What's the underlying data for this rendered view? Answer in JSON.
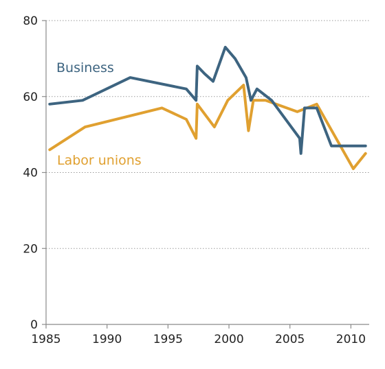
{
  "chart_data": {
    "type": "line",
    "title": "",
    "xlabel": "",
    "ylabel": "",
    "xlim": [
      1985,
      2011.5
    ],
    "ylim": [
      0,
      80
    ],
    "x_ticks": [
      1985,
      1990,
      1995,
      2000,
      2005,
      2010
    ],
    "y_ticks": [
      0,
      20,
      40,
      60,
      80
    ],
    "x_tick_labels": [
      "1985",
      "1990",
      "1995",
      "2000",
      "2005",
      "2010"
    ],
    "y_tick_labels": [
      "0",
      "20",
      "40",
      "60",
      "80"
    ],
    "grid": "horizontal dotted",
    "legend": "inline labels",
    "series": [
      {
        "name": "Business",
        "color": "#3d6480",
        "points": [
          [
            1985.3,
            58
          ],
          [
            1988,
            59
          ],
          [
            1991.9,
            65
          ],
          [
            1996.5,
            62
          ],
          [
            1997.3,
            59
          ],
          [
            1997.4,
            68
          ],
          [
            1998,
            66
          ],
          [
            1998.7,
            64
          ],
          [
            1999.7,
            73
          ],
          [
            2000.5,
            70
          ],
          [
            2001.4,
            65
          ],
          [
            2001.8,
            59
          ],
          [
            2002.3,
            62
          ],
          [
            2003.5,
            59
          ],
          [
            2005.8,
            49
          ],
          [
            2005.9,
            45
          ],
          [
            2006.2,
            57
          ],
          [
            2007.2,
            57
          ],
          [
            2008.4,
            47
          ],
          [
            2011.2,
            47
          ]
        ]
      },
      {
        "name": "Labor unions",
        "color": "#e0a030",
        "points": [
          [
            1985.3,
            46
          ],
          [
            1988.2,
            52
          ],
          [
            1994.5,
            57
          ],
          [
            1996.5,
            54
          ],
          [
            1997.3,
            49
          ],
          [
            1997.4,
            58
          ],
          [
            1998.8,
            52
          ],
          [
            1999.9,
            59
          ],
          [
            2001.2,
            63
          ],
          [
            2001.6,
            51
          ],
          [
            2002,
            59
          ],
          [
            2003,
            59
          ],
          [
            2005.6,
            56
          ],
          [
            2007.2,
            58
          ],
          [
            2010.2,
            41
          ],
          [
            2011.2,
            45
          ]
        ]
      }
    ]
  }
}
